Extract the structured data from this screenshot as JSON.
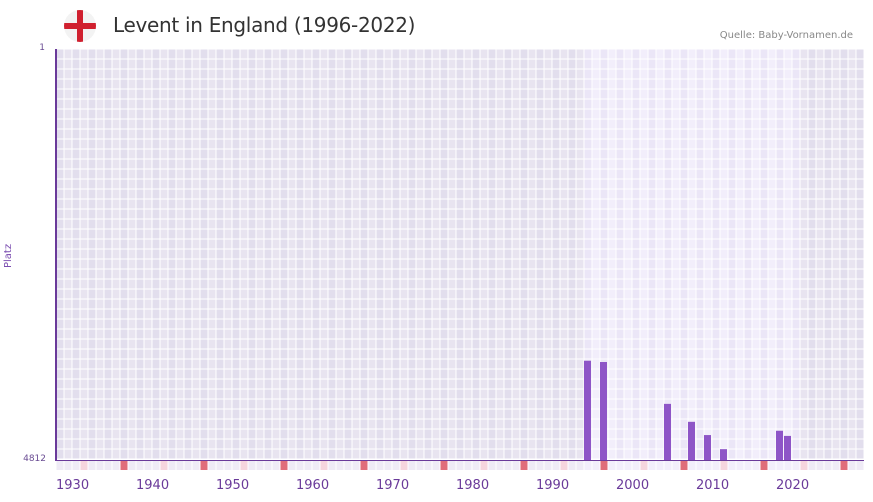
{
  "header": {
    "title": "Levent in England (1996-2022)",
    "source": "Quelle: Baby-Vornamen.de",
    "flag": "england-flag-icon"
  },
  "colors": {
    "bar": "#8e55c7",
    "axis": "#6a3a9a",
    "grid_bg_dark": "#e4e0ee",
    "grid_bg_light": "#efebf8",
    "decade_marker": "#e06d7a",
    "half_decade_marker": "#f6d6de"
  },
  "chart_data": {
    "type": "bar",
    "title": "Levent in England (1996-2022)",
    "xlabel": "",
    "ylabel": "Platz",
    "y_inverted": true,
    "ylim": [
      1,
      4812
    ],
    "yticks": [
      "1",
      "4812"
    ],
    "xlim": [
      1930,
      2030
    ],
    "xticks": [
      "1930",
      "1940",
      "1950",
      "1960",
      "1970",
      "1980",
      "1990",
      "2000",
      "2010",
      "2020"
    ],
    "highlight_range": [
      1996,
      2022
    ],
    "grid": true,
    "categories": [
      "1996",
      "1998",
      "2006",
      "2009",
      "2011",
      "2013",
      "2020",
      "2021"
    ],
    "series": [
      {
        "name": "Platz",
        "values": [
          3650,
          3665,
          4155,
          4365,
          4520,
          4685,
          4470,
          4530
        ]
      }
    ]
  }
}
